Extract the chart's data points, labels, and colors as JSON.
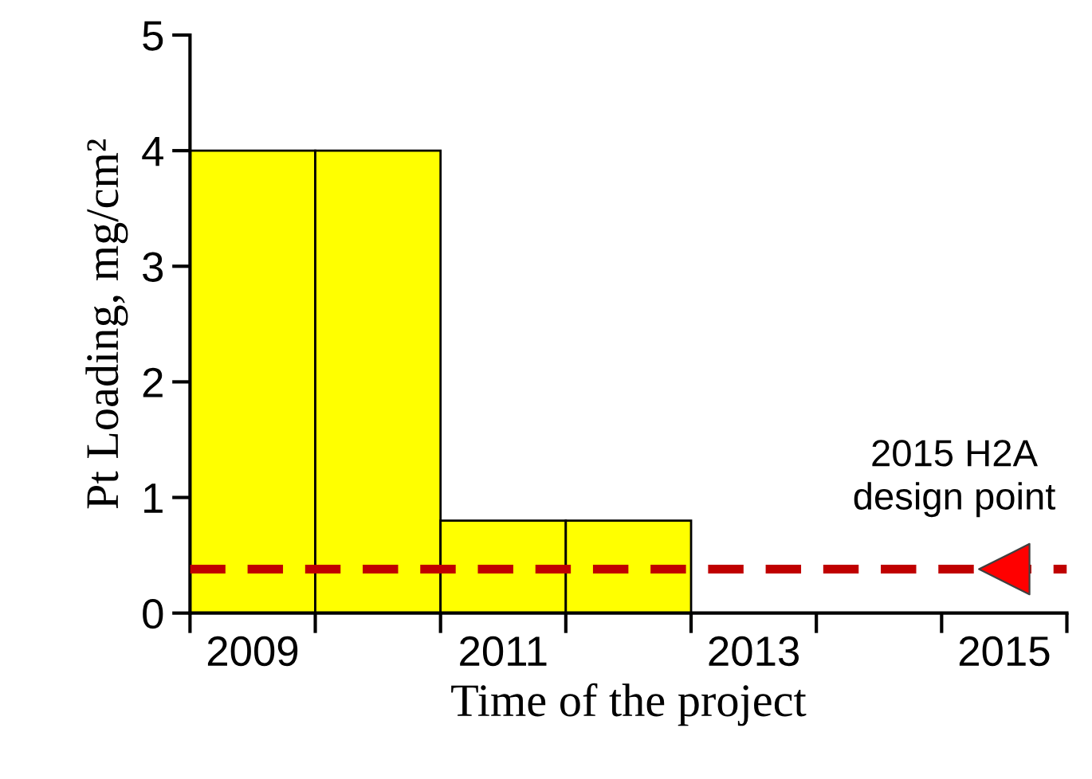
{
  "chart_data": {
    "type": "bar",
    "xlabel": "Time of the project",
    "ylabel": "Pt Loading, mg/cm²",
    "categories": [
      "2009",
      null,
      "2011",
      null,
      "2013",
      null,
      "2015"
    ],
    "series": [
      {
        "color": "#ffff00",
        "values": [
          4,
          4,
          0.8,
          0.8,
          null,
          null,
          null
        ]
      },
      {
        "type": "scatter",
        "color": "#ff0000",
        "values": [
          null,
          null,
          null,
          null,
          null,
          null,
          0.38
        ],
        "marker": "triangle"
      }
    ],
    "ylim": [
      0,
      5
    ],
    "yticks": [
      0,
      1,
      2,
      3,
      4,
      5
    ],
    "ref_lines": [
      {
        "axis": "y",
        "value": 0.38,
        "color": "#c00000",
        "line_style": "dashed"
      }
    ],
    "annotations": [
      {
        "text": "2015 H2A design point",
        "x": "2015",
        "y": 0.38
      }
    ],
    "grid": false,
    "legend": false
  }
}
